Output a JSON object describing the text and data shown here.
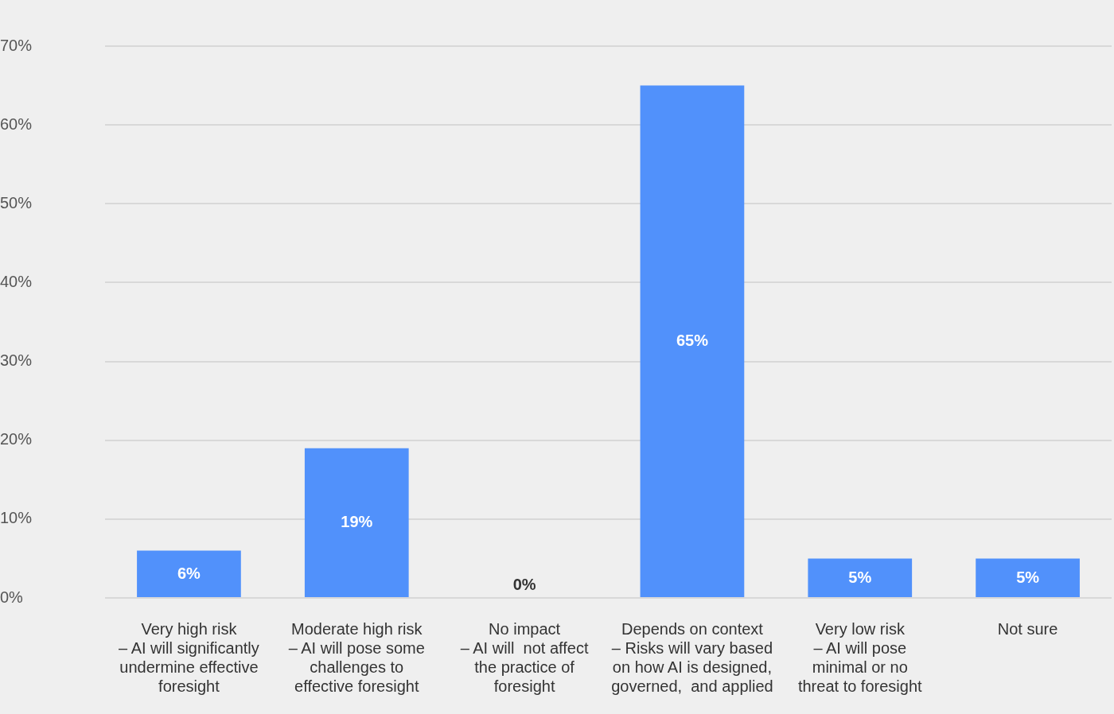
{
  "chart_data": {
    "type": "bar",
    "categories": [
      "Very high risk\n– AI will significantly\nundermine effective\nforesight",
      "Moderate high risk\n– AI will pose some\nchallenges to\neffective foresight",
      "No impact\n– AI will  not affect\nthe practice of\nforesight",
      "Depends on context\n– Risks will vary based\non how AI is designed,\ngoverned,  and applied",
      "Very low risk\n– AI will pose\nminimal or no\nthreat to foresight",
      "Not sure"
    ],
    "values": [
      6,
      19,
      0,
      65,
      5,
      5
    ],
    "color": "#5191fb",
    "ylim": [
      0,
      70
    ],
    "yticks": [
      {
        "value": 0,
        "label": "0%"
      },
      {
        "value": 10,
        "label": "10%"
      },
      {
        "value": 20,
        "label": "20%"
      },
      {
        "value": 30,
        "label": "30%"
      },
      {
        "value": 40,
        "label": "40%"
      },
      {
        "value": 50,
        "label": "50%"
      },
      {
        "value": 60,
        "label": "60%"
      },
      {
        "value": 70,
        "label": "70%"
      }
    ],
    "value_labels": [
      "6%",
      "19%",
      "0%",
      "65%",
      "5%",
      "5%"
    ],
    "grid": "y",
    "legend": false
  }
}
